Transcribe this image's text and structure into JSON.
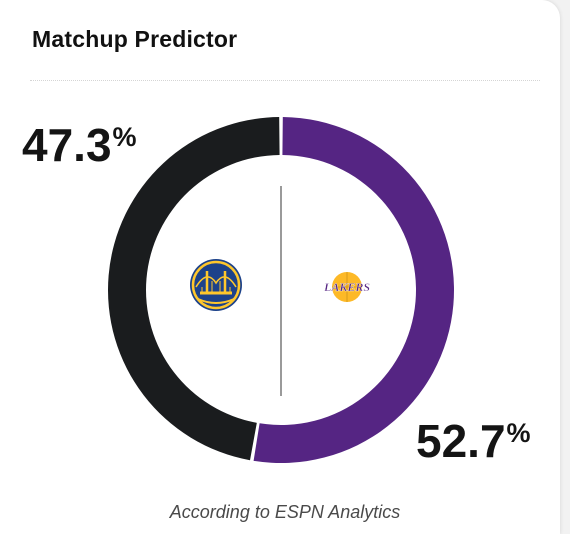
{
  "card": {
    "title": "Matchup Predictor",
    "source": "According to ESPN Analytics"
  },
  "teams": {
    "left": {
      "logo_icon": "golden-state-warriors-logo",
      "color": "#1a1c1e"
    },
    "right": {
      "logo_icon": "los-angeles-lakers-logo",
      "logo_text": "LAKERS",
      "color": "#552583"
    }
  },
  "chart_data": {
    "type": "pie",
    "categories": [
      "Warriors",
      "Lakers"
    ],
    "values": [
      47.3,
      52.7
    ],
    "value_labels": [
      "47.3",
      "52.7"
    ],
    "unit": "%",
    "colors": [
      "#1a1c1e",
      "#552583"
    ],
    "title": "Matchup Predictor"
  }
}
